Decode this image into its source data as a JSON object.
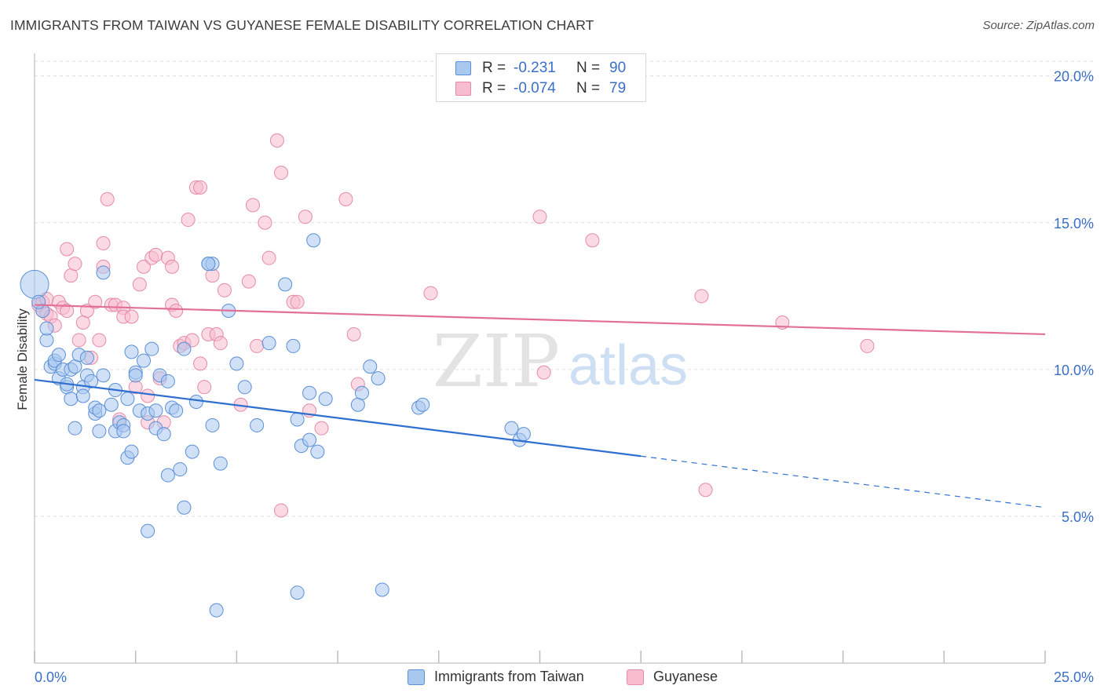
{
  "title": "IMMIGRANTS FROM TAIWAN VS GUYANESE FEMALE DISABILITY CORRELATION CHART",
  "source": "Source: ZipAtlas.com",
  "watermark": {
    "zip": "ZIP",
    "atlas": "atlas"
  },
  "legend": {
    "rows": [
      {
        "r_label": "R =",
        "r_value": "-0.231",
        "n_label": "N =",
        "n_value": "90"
      },
      {
        "r_label": "R =",
        "r_value": "-0.074",
        "n_label": "N =",
        "n_value": "79"
      }
    ]
  },
  "bottom_legend": {
    "series1": "Immigrants from Taiwan",
    "series2": "Guyanese"
  },
  "colors": {
    "blue_fill": "#a9c8f0",
    "blue_stroke": "#5b8fd6",
    "blue_line": "#2f6fd0",
    "pink_fill": "#f7bccd",
    "pink_stroke": "#e68aa7",
    "pink_line": "#e26f96",
    "tick_label": "#3a6fc6",
    "grid": "#dddddd"
  },
  "chart_data": {
    "type": "scatter",
    "title": "IMMIGRANTS FROM TAIWAN VS GUYANESE FEMALE DISABILITY CORRELATION CHART",
    "xlabel": "",
    "ylabel": "Female Disability",
    "xlim": [
      0,
      25
    ],
    "ylim": [
      0,
      20.5
    ],
    "x_tick_labels": [
      "0.0%",
      "25.0%"
    ],
    "y_tick_labels": [
      "5.0%",
      "10.0%",
      "15.0%",
      "20.0%"
    ],
    "y_ticks": [
      5,
      10,
      15,
      20
    ],
    "grid": true,
    "series": [
      {
        "name": "Immigrants from Taiwan",
        "r": -0.231,
        "n": 90,
        "trend": {
          "x0": 0,
          "y0": 9.65,
          "x1": 15,
          "y1": 7.05,
          "dash_to_x": 25,
          "dash_to_y": 5.3
        },
        "points": [
          [
            0.2,
            12.0
          ],
          [
            0.3,
            11.0
          ],
          [
            0.3,
            11.4
          ],
          [
            0.4,
            10.1
          ],
          [
            0.5,
            10.2
          ],
          [
            0.5,
            10.3
          ],
          [
            0.6,
            10.5
          ],
          [
            0.6,
            9.7
          ],
          [
            0.7,
            10.0
          ],
          [
            0.8,
            9.4
          ],
          [
            0.8,
            9.5
          ],
          [
            0.9,
            9.0
          ],
          [
            0.9,
            10.0
          ],
          [
            1.0,
            10.1
          ],
          [
            1.0,
            8.0
          ],
          [
            1.1,
            10.5
          ],
          [
            1.2,
            9.4
          ],
          [
            1.2,
            9.1
          ],
          [
            1.3,
            10.4
          ],
          [
            1.3,
            9.8
          ],
          [
            1.4,
            9.6
          ],
          [
            1.5,
            8.5
          ],
          [
            1.5,
            8.7
          ],
          [
            1.6,
            7.9
          ],
          [
            1.6,
            8.6
          ],
          [
            1.7,
            9.8
          ],
          [
            1.7,
            13.3
          ],
          [
            1.9,
            8.8
          ],
          [
            2.0,
            7.9
          ],
          [
            2.0,
            9.3
          ],
          [
            2.1,
            8.2
          ],
          [
            2.2,
            8.1
          ],
          [
            2.2,
            7.9
          ],
          [
            2.3,
            7.0
          ],
          [
            2.3,
            9.0
          ],
          [
            2.4,
            7.2
          ],
          [
            2.4,
            10.6
          ],
          [
            2.5,
            9.9
          ],
          [
            2.5,
            9.8
          ],
          [
            2.6,
            8.6
          ],
          [
            2.7,
            10.3
          ],
          [
            2.8,
            8.5
          ],
          [
            2.8,
            4.5
          ],
          [
            2.9,
            10.7
          ],
          [
            3.0,
            8.6
          ],
          [
            3.0,
            8.0
          ],
          [
            3.1,
            9.8
          ],
          [
            3.2,
            7.8
          ],
          [
            3.3,
            6.4
          ],
          [
            3.3,
            9.6
          ],
          [
            3.4,
            8.7
          ],
          [
            3.5,
            8.6
          ],
          [
            3.6,
            6.6
          ],
          [
            3.7,
            10.7
          ],
          [
            3.7,
            5.3
          ],
          [
            3.9,
            7.2
          ],
          [
            4.0,
            8.9
          ],
          [
            4.3,
            13.6
          ],
          [
            4.4,
            13.6
          ],
          [
            4.4,
            8.1
          ],
          [
            4.5,
            1.8
          ],
          [
            4.6,
            6.8
          ],
          [
            4.8,
            12.0
          ],
          [
            5.0,
            10.2
          ],
          [
            5.2,
            9.4
          ],
          [
            5.5,
            8.1
          ],
          [
            5.8,
            10.9
          ],
          [
            6.2,
            12.9
          ],
          [
            6.4,
            10.8
          ],
          [
            6.5,
            8.3
          ],
          [
            6.5,
            2.4
          ],
          [
            6.6,
            7.4
          ],
          [
            6.8,
            9.2
          ],
          [
            6.8,
            7.6
          ],
          [
            6.9,
            14.4
          ],
          [
            7.0,
            7.2
          ],
          [
            7.2,
            9.0
          ],
          [
            8.0,
            8.8
          ],
          [
            8.1,
            9.2
          ],
          [
            8.3,
            10.1
          ],
          [
            8.5,
            9.7
          ],
          [
            8.6,
            2.5
          ],
          [
            9.5,
            8.7
          ],
          [
            9.6,
            8.8
          ],
          [
            11.8,
            8.0
          ],
          [
            12.0,
            7.6
          ],
          [
            12.1,
            7.8
          ],
          [
            0.0,
            12.9
          ],
          [
            0.1,
            12.3
          ],
          [
            4.3,
            13.6
          ]
        ]
      },
      {
        "name": "Guyanese",
        "r": -0.074,
        "n": 79,
        "trend": {
          "x0": 0,
          "y0": 12.2,
          "x1": 25,
          "y1": 11.2
        },
        "points": [
          [
            0.1,
            12.2
          ],
          [
            0.2,
            12.0
          ],
          [
            0.2,
            12.3
          ],
          [
            0.3,
            11.9
          ],
          [
            0.3,
            12.4
          ],
          [
            0.4,
            11.8
          ],
          [
            0.5,
            11.5
          ],
          [
            0.6,
            12.3
          ],
          [
            0.7,
            12.1
          ],
          [
            0.8,
            12.0
          ],
          [
            0.8,
            14.1
          ],
          [
            0.9,
            13.2
          ],
          [
            1.0,
            13.6
          ],
          [
            1.1,
            11.0
          ],
          [
            1.2,
            11.6
          ],
          [
            1.3,
            12.0
          ],
          [
            1.4,
            10.4
          ],
          [
            1.5,
            12.3
          ],
          [
            1.6,
            11.0
          ],
          [
            1.7,
            13.5
          ],
          [
            1.7,
            14.3
          ],
          [
            1.8,
            15.8
          ],
          [
            1.9,
            12.2
          ],
          [
            2.0,
            12.2
          ],
          [
            2.1,
            8.3
          ],
          [
            2.2,
            12.1
          ],
          [
            2.2,
            11.8
          ],
          [
            2.4,
            11.8
          ],
          [
            2.5,
            9.4
          ],
          [
            2.6,
            12.9
          ],
          [
            2.7,
            13.5
          ],
          [
            2.8,
            8.2
          ],
          [
            2.8,
            9.1
          ],
          [
            2.9,
            13.8
          ],
          [
            3.0,
            13.9
          ],
          [
            3.1,
            9.7
          ],
          [
            3.2,
            8.2
          ],
          [
            3.3,
            13.8
          ],
          [
            3.4,
            13.5
          ],
          [
            3.4,
            12.2
          ],
          [
            3.5,
            12.0
          ],
          [
            3.6,
            10.8
          ],
          [
            3.7,
            10.9
          ],
          [
            3.8,
            15.1
          ],
          [
            3.9,
            11.0
          ],
          [
            4.0,
            16.2
          ],
          [
            4.1,
            16.2
          ],
          [
            4.1,
            10.2
          ],
          [
            4.2,
            9.4
          ],
          [
            4.3,
            11.2
          ],
          [
            4.4,
            13.2
          ],
          [
            4.5,
            11.2
          ],
          [
            4.6,
            10.9
          ],
          [
            4.7,
            12.7
          ],
          [
            5.1,
            8.8
          ],
          [
            5.3,
            13.0
          ],
          [
            5.4,
            15.6
          ],
          [
            5.5,
            10.8
          ],
          [
            5.7,
            15.0
          ],
          [
            5.8,
            13.8
          ],
          [
            6.0,
            17.8
          ],
          [
            6.1,
            16.7
          ],
          [
            6.1,
            5.2
          ],
          [
            6.4,
            12.3
          ],
          [
            6.5,
            12.3
          ],
          [
            6.7,
            15.2
          ],
          [
            6.8,
            8.6
          ],
          [
            7.1,
            8.0
          ],
          [
            7.7,
            15.8
          ],
          [
            7.9,
            11.2
          ],
          [
            8.0,
            9.5
          ],
          [
            9.8,
            12.6
          ],
          [
            12.5,
            15.2
          ],
          [
            12.6,
            9.9
          ],
          [
            13.8,
            14.4
          ],
          [
            16.5,
            12.5
          ],
          [
            16.6,
            5.9
          ],
          [
            18.5,
            11.6
          ],
          [
            20.6,
            10.8
          ]
        ]
      }
    ]
  }
}
